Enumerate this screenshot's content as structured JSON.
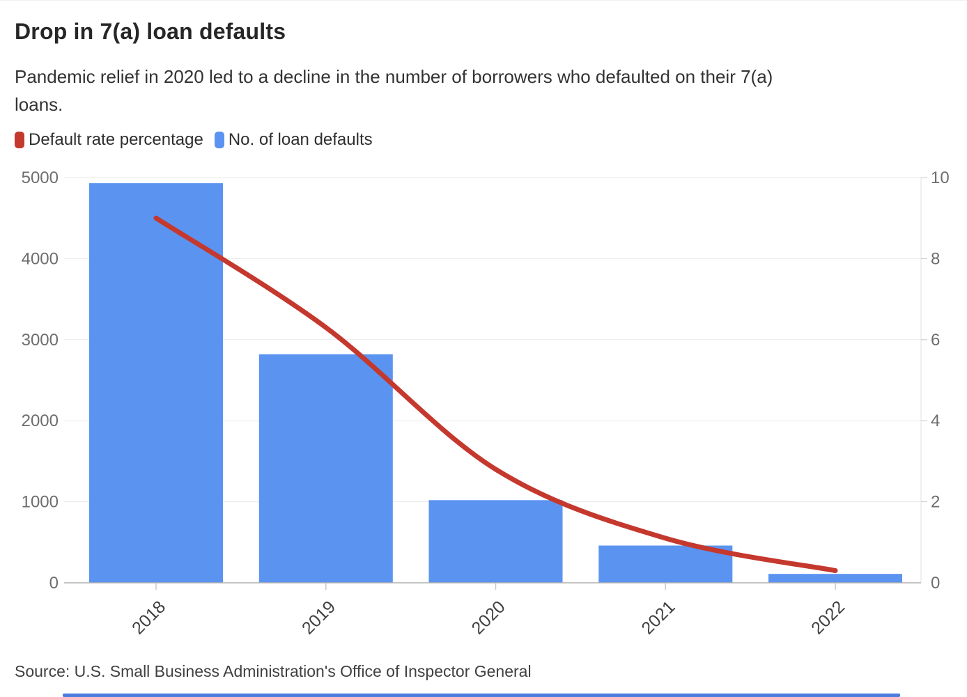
{
  "header": {
    "title": "Drop in 7(a) loan defaults",
    "subtitle_lines": [
      "Pandemic relief in 2020 led to a decline in the number of borrowers who defaulted on their 7(a)",
      "loans."
    ]
  },
  "legend": {
    "items": [
      {
        "label": "Default rate percentage",
        "color": "#c5382d"
      },
      {
        "label": "No. of loan defaults",
        "color": "#5b93f1"
      }
    ]
  },
  "chart_data": {
    "type": "bar",
    "categories": [
      "2018",
      "2019",
      "2020",
      "2021",
      "2022"
    ],
    "series": [
      {
        "name": "No. of loan defaults",
        "type": "bar",
        "axis": "left",
        "color": "#5b93f1",
        "values": [
          4930,
          2820,
          1020,
          460,
          110
        ]
      },
      {
        "name": "Default rate percentage",
        "type": "line",
        "axis": "right",
        "color": "#c5382d",
        "values": [
          9.0,
          6.3,
          2.8,
          1.1,
          0.3
        ]
      }
    ],
    "left_axis": {
      "ticks": [
        0,
        1000,
        2000,
        3000,
        4000,
        5000
      ],
      "range": [
        0,
        5000
      ]
    },
    "right_axis": {
      "ticks": [
        0,
        2,
        4,
        6,
        8,
        10
      ],
      "range": [
        0,
        10
      ]
    },
    "grid": true,
    "legend_position": "top",
    "title": "Drop in 7(a) loan defaults",
    "xlabel": "",
    "ylabel": ""
  },
  "source": {
    "text": "Source: U.S. Small Business Administration's Office of Inspector General"
  },
  "colors": {
    "grid": "#eaeaea",
    "baseline": "#b0b0b0",
    "right_axis_line": "#e2e2e2",
    "tick": "#c8c8c8",
    "y_label": "#6d6d6d",
    "x_label": "#3f3f3f",
    "bottom_strip": "#4c7ce0"
  }
}
